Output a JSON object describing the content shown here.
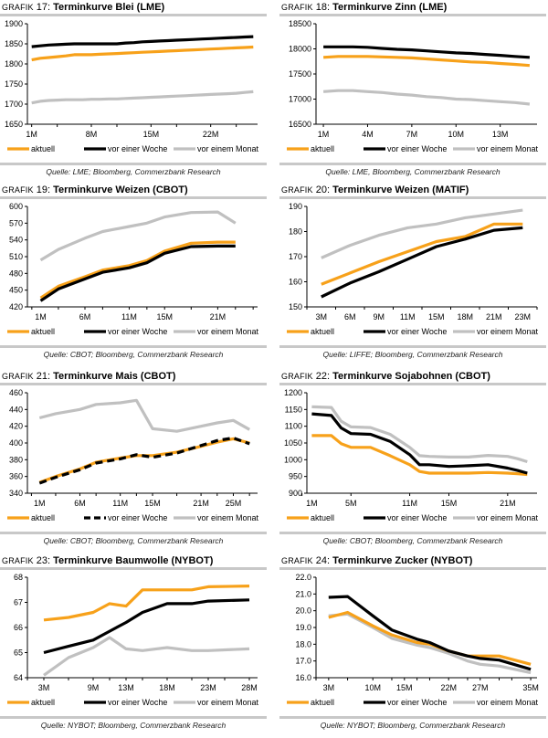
{
  "colors": {
    "aktuell": "#f7a11a",
    "woche": "#000000",
    "monat": "#c0c0c0",
    "rule": "#c8c8c8"
  },
  "legend": {
    "aktuell": "aktuell",
    "woche": "vor einer Woche",
    "monat": "vor einem Monat"
  },
  "panels": [
    {
      "prefix": "Grafik",
      "number": "17",
      "title": "Terminkurve Blei (LME)",
      "source": "Quelle: LME; Bloomberg, Commerzbank Research"
    },
    {
      "prefix": "Grafik",
      "number": "18",
      "title": "Terminkurve Zinn (LME)",
      "source": "Quelle: LME, Bloomberg, Commerzbank Research"
    },
    {
      "prefix": "Grafik",
      "number": "19",
      "title": "Terminkurve Weizen (CBOT)",
      "source": "Quelle: CBOT; Bloomberg, Commerzbank Research"
    },
    {
      "prefix": "Grafik",
      "number": "20",
      "title": "Terminkurve Weizen (MATIF)",
      "source": "Quelle: LIFFE; Bloomberg, Commerzbank Research"
    },
    {
      "prefix": "Grafik",
      "number": "21",
      "title": "Terminkurve Mais (CBOT)",
      "source": "Quelle: CBOT; Bloomberg, Commerzbank Research"
    },
    {
      "prefix": "Grafik",
      "number": "22",
      "title": "Terminkurve Sojabohnen (CBOT)",
      "source": "Quelle: CBOT; Bloomberg, Commerzbank Research"
    },
    {
      "prefix": "Grafik",
      "number": "23",
      "title": "Terminkurve Baumwolle (NYBOT)",
      "source": "Quelle: NYBOT; Bloomberg, Commerzbank Research"
    },
    {
      "prefix": "Grafik",
      "number": "24",
      "title": "Terminkurve Zucker (NYBOT)",
      "source": "Quelle: NYBOT; Bloomberg, Commerzbank Research"
    }
  ],
  "chart_data": [
    {
      "type": "line",
      "title": "Terminkurve Blei (LME)",
      "x": [
        1,
        2,
        3,
        4,
        5,
        6,
        7,
        8,
        9,
        10,
        11,
        12,
        13,
        14,
        15,
        16,
        17,
        18,
        19,
        20,
        21,
        22,
        23,
        24,
        25,
        26,
        27
      ],
      "xticks": [
        1,
        4,
        8,
        11,
        15,
        18,
        22,
        25
      ],
      "xtick_labels": {
        "1": "1M",
        "8": "8M",
        "15": "15M",
        "22": "22M"
      },
      "xlim": [
        0.5,
        27.5
      ],
      "ylim": [
        1650,
        1900
      ],
      "yticks": [
        1650,
        1700,
        1750,
        1800,
        1850,
        1900
      ],
      "legend": "bottom",
      "grid": false,
      "series": [
        {
          "key": "aktuell",
          "name": "aktuell",
          "values": [
            1810,
            1814,
            1816,
            1818,
            1820,
            1823,
            1823,
            1823,
            1824,
            1825,
            1826,
            1827,
            1828,
            1829,
            1830,
            1831,
            1832,
            1833,
            1834,
            1835,
            1836,
            1837,
            1838,
            1839,
            1840,
            1841,
            1842
          ]
        },
        {
          "key": "woche",
          "name": "vor einer Woche",
          "values": [
            1843,
            1845,
            1847,
            1848,
            1849,
            1850,
            1850,
            1850,
            1850,
            1850,
            1850,
            1852,
            1853,
            1855,
            1856,
            1857,
            1858,
            1859,
            1860,
            1861,
            1862,
            1863,
            1864,
            1865,
            1866,
            1867,
            1868
          ]
        },
        {
          "key": "monat",
          "name": "vor einem Monat",
          "values": [
            1703,
            1707,
            1709,
            1710,
            1711,
            1711,
            1711,
            1712,
            1712,
            1713,
            1713,
            1714,
            1715,
            1716,
            1717,
            1718,
            1719,
            1720,
            1721,
            1722,
            1723,
            1724,
            1725,
            1726,
            1727,
            1729,
            1731
          ]
        }
      ]
    },
    {
      "type": "line",
      "title": "Terminkurve Zinn (LME)",
      "x": [
        1,
        2,
        3,
        4,
        5,
        6,
        7,
        8,
        9,
        10,
        11,
        12,
        13,
        14,
        15
      ],
      "xticks": [
        1,
        4,
        7,
        10,
        13
      ],
      "xtick_labels": {
        "1": "1M",
        "4": "4M",
        "7": "7M",
        "10": "10M",
        "13": "13M"
      },
      "xlim": [
        0.5,
        15.5
      ],
      "ylim": [
        16500,
        18500
      ],
      "yticks": [
        16500,
        17000,
        17500,
        18000,
        18500
      ],
      "legend": "bottom",
      "grid": false,
      "series": [
        {
          "key": "aktuell",
          "name": "aktuell",
          "values": [
            17830,
            17850,
            17850,
            17850,
            17840,
            17830,
            17820,
            17800,
            17780,
            17760,
            17740,
            17730,
            17710,
            17690,
            17670
          ]
        },
        {
          "key": "woche",
          "name": "vor einer Woche",
          "values": [
            18040,
            18040,
            18040,
            18030,
            18010,
            17990,
            17980,
            17960,
            17940,
            17920,
            17910,
            17890,
            17870,
            17850,
            17830
          ]
        },
        {
          "key": "monat",
          "name": "vor einem Monat",
          "values": [
            17150,
            17170,
            17170,
            17150,
            17130,
            17100,
            17080,
            17050,
            17030,
            17000,
            16990,
            16970,
            16950,
            16930,
            16900
          ]
        }
      ]
    },
    {
      "type": "line",
      "title": "Terminkurve Weizen (CBOT)",
      "x": [
        1,
        3,
        6,
        8,
        11,
        13,
        15,
        18,
        21,
        23
      ],
      "xticks": [
        0,
        3,
        6,
        8,
        11,
        13,
        15,
        18,
        21,
        23,
        25
      ],
      "xtick_labels": {
        "1": "1M",
        "6": "6M",
        "11": "11M",
        "15": "15M",
        "21": "21M"
      },
      "xlim": [
        -0.5,
        25.5
      ],
      "ylim": [
        420,
        600
      ],
      "yticks": [
        420,
        450,
        480,
        510,
        540,
        570,
        600
      ],
      "legend": "bottom",
      "grid": false,
      "series": [
        {
          "key": "aktuell",
          "name": "aktuell",
          "values": [
            436,
            457,
            474,
            486,
            494,
            503,
            520,
            534,
            536,
            536
          ]
        },
        {
          "key": "woche",
          "name": "vor einer Woche",
          "values": [
            431,
            452,
            470,
            482,
            490,
            499,
            516,
            528,
            529,
            529
          ]
        },
        {
          "key": "monat",
          "name": "vor einem Monat",
          "values": [
            504,
            523,
            543,
            555,
            564,
            570,
            581,
            589,
            590,
            570
          ]
        }
      ]
    },
    {
      "type": "line",
      "title": "Terminkurve Weizen (MATIF)",
      "categories": [
        "3M",
        "6M",
        "9M",
        "11M",
        "15M",
        "18M",
        "21M",
        "23M"
      ],
      "ylim": [
        150,
        190
      ],
      "yticks": [
        150,
        160,
        170,
        180,
        190
      ],
      "legend": "bottom",
      "grid": false,
      "series": [
        {
          "key": "aktuell",
          "name": "aktuell",
          "values": [
            159,
            163.5,
            168,
            172,
            176,
            178,
            183,
            183
          ]
        },
        {
          "key": "woche",
          "name": "vor einer Woche",
          "values": [
            154,
            159.5,
            164,
            169,
            174,
            177,
            180.5,
            181.5
          ]
        },
        {
          "key": "monat",
          "name": "vor einem Monat",
          "values": [
            169.5,
            174.5,
            178.5,
            181.5,
            183,
            185.5,
            187,
            188.5
          ]
        }
      ]
    },
    {
      "type": "line",
      "title": "Terminkurve Mais (CBOT)",
      "x": [
        1,
        3,
        6,
        8,
        11,
        13,
        15,
        18,
        21,
        23,
        25,
        27
      ],
      "xticks": [
        0,
        3,
        6,
        8,
        11,
        13,
        15,
        18,
        21,
        23,
        25,
        27
      ],
      "xtick_labels": {
        "1": "1M",
        "6": "6M",
        "11": "11M",
        "15": "15M",
        "21": "21M",
        "25": "25M"
      },
      "xlim": [
        -0.5,
        28
      ],
      "ylim": [
        340,
        460
      ],
      "yticks": [
        340,
        360,
        380,
        400,
        420,
        440,
        460
      ],
      "legend": "bottom",
      "grid": false,
      "series": [
        {
          "key": "aktuell",
          "name": "aktuell",
          "values": [
            353,
            360,
            369,
            377,
            382,
            385,
            385,
            389,
            396,
            401,
            405,
            400
          ]
        },
        {
          "key": "woche",
          "name": "vor einer Woche",
          "dashed": true,
          "values": [
            352,
            359,
            368,
            376,
            381,
            386,
            383,
            388,
            397,
            403,
            406,
            399
          ]
        },
        {
          "key": "monat",
          "name": "vor einem Monat",
          "values": [
            430,
            435,
            440,
            446,
            448,
            451,
            417,
            414,
            420,
            424,
            427,
            416
          ]
        }
      ]
    },
    {
      "type": "line",
      "title": "Terminkurve Sojabohnen (CBOT)",
      "x": [
        1,
        3,
        4,
        5,
        7,
        9,
        11,
        12,
        13,
        15,
        17,
        19,
        21,
        22,
        23
      ],
      "xticks": [
        0,
        5,
        11,
        15,
        21
      ],
      "xtick_labels": {
        "1": "1M",
        "5": "5M",
        "11": "11M",
        "15": "15M",
        "21": "21M"
      },
      "xlim": [
        0.5,
        24
      ],
      "ylim": [
        900,
        1200
      ],
      "yticks": [
        900,
        950,
        1000,
        1050,
        1100,
        1150,
        1200
      ],
      "legend": "bottom",
      "grid": false,
      "series": [
        {
          "key": "aktuell",
          "name": "aktuell",
          "values": [
            1072,
            1072,
            1048,
            1037,
            1037,
            1012,
            985,
            965,
            960,
            960,
            960,
            962,
            960,
            958,
            956
          ]
        },
        {
          "key": "woche",
          "name": "vor einer Woche",
          "values": [
            1137,
            1132,
            1095,
            1078,
            1076,
            1055,
            1015,
            985,
            985,
            980,
            982,
            985,
            975,
            968,
            960
          ]
        },
        {
          "key": "monat",
          "name": "vor einem Monat",
          "values": [
            1158,
            1156,
            1115,
            1098,
            1096,
            1076,
            1037,
            1012,
            1010,
            1008,
            1008,
            1013,
            1010,
            1003,
            994
          ]
        }
      ]
    },
    {
      "type": "line",
      "title": "Terminkurve Baumwolle (NYBOT)",
      "x": [
        3,
        6,
        9,
        11,
        13,
        15,
        18,
        21,
        23,
        28
      ],
      "xticks": [
        1,
        3,
        6,
        9,
        11,
        13,
        15,
        18,
        21,
        23,
        25,
        28
      ],
      "xtick_labels": {
        "3": "3M",
        "9": "9M",
        "13": "13M",
        "18": "18M",
        "23": "23M",
        "28": "28M"
      },
      "xlim": [
        1,
        29
      ],
      "ylim": [
        64,
        68
      ],
      "yticks": [
        64,
        65,
        66,
        67,
        68
      ],
      "legend": "bottom",
      "grid": false,
      "series": [
        {
          "key": "aktuell",
          "name": "aktuell",
          "values": [
            66.3,
            66.4,
            66.6,
            66.95,
            66.85,
            67.5,
            67.5,
            67.5,
            67.62,
            67.65
          ]
        },
        {
          "key": "woche",
          "name": "vor einer Woche",
          "values": [
            65.0,
            65.25,
            65.5,
            65.85,
            66.2,
            66.6,
            66.95,
            66.95,
            67.05,
            67.1
          ]
        },
        {
          "key": "monat",
          "name": "vor einem Monat",
          "values": [
            64.1,
            64.8,
            65.2,
            65.6,
            65.15,
            65.08,
            65.2,
            65.08,
            65.08,
            65.15
          ]
        }
      ]
    },
    {
      "type": "line",
      "title": "Terminkurve Zucker (NYBOT)",
      "x": [
        3,
        6,
        10,
        13,
        17,
        19,
        22,
        25,
        27,
        30,
        35
      ],
      "xticks": [
        1,
        3,
        6,
        10,
        13,
        15,
        17,
        19,
        22,
        25,
        27,
        30,
        32,
        35
      ],
      "xtick_labels": {
        "3": "3M",
        "10": "10M",
        "15": "15M",
        "22": "22M",
        "27": "27M",
        "35": "35M"
      },
      "xlim": [
        1,
        36
      ],
      "ylim": [
        16.0,
        22.0
      ],
      "yticks": [
        16.0,
        17.0,
        18.0,
        19.0,
        20.0,
        21.0,
        22.0
      ],
      "legend": "bottom",
      "grid": false,
      "series": [
        {
          "key": "aktuell",
          "name": "aktuell",
          "values": [
            19.6,
            19.9,
            19.1,
            18.55,
            18.1,
            18.0,
            17.6,
            17.3,
            17.3,
            17.3,
            16.8
          ]
        },
        {
          "key": "woche",
          "name": "vor einer Woche",
          "values": [
            20.8,
            20.85,
            19.7,
            18.85,
            18.3,
            18.1,
            17.6,
            17.3,
            17.15,
            17.05,
            16.5
          ]
        },
        {
          "key": "monat",
          "name": "vor einem Monat",
          "values": [
            19.7,
            19.8,
            19.0,
            18.35,
            17.95,
            17.8,
            17.45,
            17.0,
            16.8,
            16.7,
            16.3
          ]
        }
      ]
    }
  ]
}
